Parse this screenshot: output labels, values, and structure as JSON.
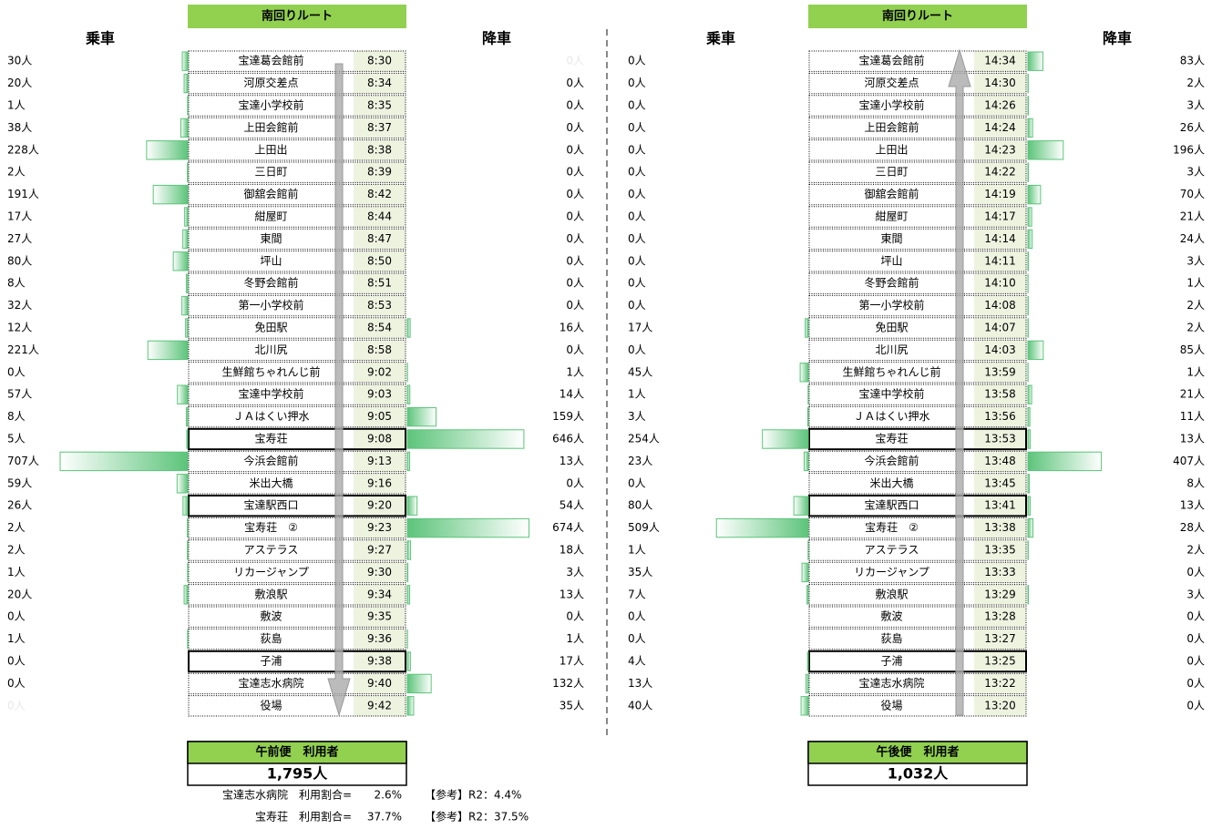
{
  "stops": [
    "宝達葛会館前",
    "河原交差点",
    "宝達小学校前",
    "上田会館前",
    "上田出",
    "三日町",
    "御舘会館前",
    "紺屋町",
    "東間",
    "坪山",
    "冬野会館前",
    "第一小学校前",
    "免田駅",
    "北川尻",
    "生鮮館ちゃれんじ前",
    "宝達中学校前",
    "ＪＡはくい押水",
    "宝寿荘",
    "今浜会館前",
    "米出大橋",
    "宝達駅西口",
    "宝寿荘　②",
    "アステラス",
    "リカージャンプ",
    "敷浪駅",
    "敷波",
    "荻島",
    "子浦",
    "宝達志水病院",
    "役場"
  ],
  "bold_rows": [
    17,
    20,
    27
  ],
  "panels": [
    {
      "title": "南回りルート",
      "board_header": "乗車",
      "alight_header": "降車",
      "direction": "down",
      "times": [
        "8:30",
        "8:34",
        "8:35",
        "8:37",
        "8:38",
        "8:39",
        "8:42",
        "8:44",
        "8:47",
        "8:50",
        "8:51",
        "8:53",
        "8:54",
        "8:58",
        "9:02",
        "9:03",
        "9:05",
        "9:08",
        "9:13",
        "9:16",
        "9:20",
        "9:23",
        "9:27",
        "9:30",
        "9:34",
        "9:35",
        "9:36",
        "9:38",
        "9:40",
        "9:42"
      ],
      "board": [
        30,
        20,
        1,
        38,
        228,
        2,
        191,
        17,
        27,
        80,
        8,
        32,
        12,
        221,
        0,
        57,
        8,
        5,
        707,
        59,
        26,
        2,
        2,
        1,
        20,
        0,
        1,
        0,
        0,
        0
      ],
      "board_labels": [
        "30人",
        "20人",
        "1人",
        "38人",
        "228人",
        "2人",
        "191人",
        "17人",
        "27人",
        "80人",
        "8人",
        "32人",
        "12人",
        "221人",
        "0人",
        "57人",
        "8人",
        "5人",
        "707人",
        "59人",
        "26人",
        "2人",
        "2人",
        "1人",
        "20人",
        "0人",
        "1人",
        "0人",
        "0人",
        "0人"
      ],
      "alight": [
        0,
        0,
        0,
        0,
        0,
        0,
        0,
        0,
        0,
        0,
        0,
        0,
        16,
        0,
        1,
        14,
        159,
        646,
        13,
        0,
        54,
        674,
        18,
        3,
        13,
        0,
        1,
        17,
        132,
        35
      ],
      "alight_labels": [
        "0人",
        "0人",
        "0人",
        "0人",
        "0人",
        "0人",
        "0人",
        "0人",
        "0人",
        "0人",
        "0人",
        "0人",
        "16人",
        "0人",
        "1人",
        "14人",
        "159人",
        "646人",
        "13人",
        "0人",
        "54人",
        "674人",
        "18人",
        "3人",
        "13人",
        "0人",
        "1人",
        "17人",
        "132人",
        "35人"
      ],
      "faint_board": [
        29
      ],
      "faint_alight": [
        0
      ],
      "total_title": "午前便　利用者",
      "total": "1,795人"
    },
    {
      "title": "南回りルート",
      "board_header": "乗車",
      "alight_header": "降車",
      "direction": "up",
      "times": [
        "14:34",
        "14:30",
        "14:26",
        "14:24",
        "14:23",
        "14:22",
        "14:19",
        "14:17",
        "14:14",
        "14:11",
        "14:10",
        "14:08",
        "14:07",
        "14:03",
        "13:59",
        "13:58",
        "13:56",
        "13:53",
        "13:48",
        "13:45",
        "13:41",
        "13:38",
        "13:35",
        "13:33",
        "13:29",
        "13:28",
        "13:27",
        "13:25",
        "13:22",
        "13:20"
      ],
      "board": [
        0,
        0,
        0,
        0,
        0,
        0,
        0,
        0,
        0,
        0,
        0,
        0,
        17,
        0,
        45,
        1,
        3,
        254,
        23,
        0,
        80,
        509,
        1,
        35,
        7,
        0,
        0,
        4,
        13,
        40
      ],
      "board_labels": [
        "0人",
        "0人",
        "0人",
        "0人",
        "0人",
        "0人",
        "0人",
        "0人",
        "0人",
        "0人",
        "0人",
        "0人",
        "17人",
        "0人",
        "45人",
        "1人",
        "3人",
        "254人",
        "23人",
        "0人",
        "80人",
        "509人",
        "1人",
        "35人",
        "7人",
        "0人",
        "0人",
        "4人",
        "13人",
        "40人"
      ],
      "alight": [
        83,
        2,
        3,
        26,
        196,
        3,
        70,
        21,
        24,
        3,
        1,
        2,
        2,
        85,
        1,
        21,
        11,
        13,
        407,
        8,
        13,
        28,
        2,
        0,
        3,
        0,
        0,
        0,
        0,
        0
      ],
      "alight_labels": [
        "83人",
        "2人",
        "3人",
        "26人",
        "196人",
        "3人",
        "70人",
        "21人",
        "24人",
        "3人",
        "1人",
        "2人",
        "2人",
        "85人",
        "1人",
        "21人",
        "11人",
        "13人",
        "407人",
        "8人",
        "13人",
        "28人",
        "2人",
        "0人",
        "3人",
        "0人",
        "0人",
        "0人",
        "0人",
        "0人"
      ],
      "faint_board": [],
      "faint_alight": [],
      "total_title": "午後便　利用者",
      "total": "1,032人"
    }
  ],
  "notes": [
    {
      "label": "宝達志水病院　利用割合=",
      "value": "2.6%",
      "ref": "【参考】R2：4.4%"
    },
    {
      "label": "宝寿荘　利用割合=",
      "value": "37.7%",
      "ref": "【参考】R2：37.5%"
    }
  ]
}
